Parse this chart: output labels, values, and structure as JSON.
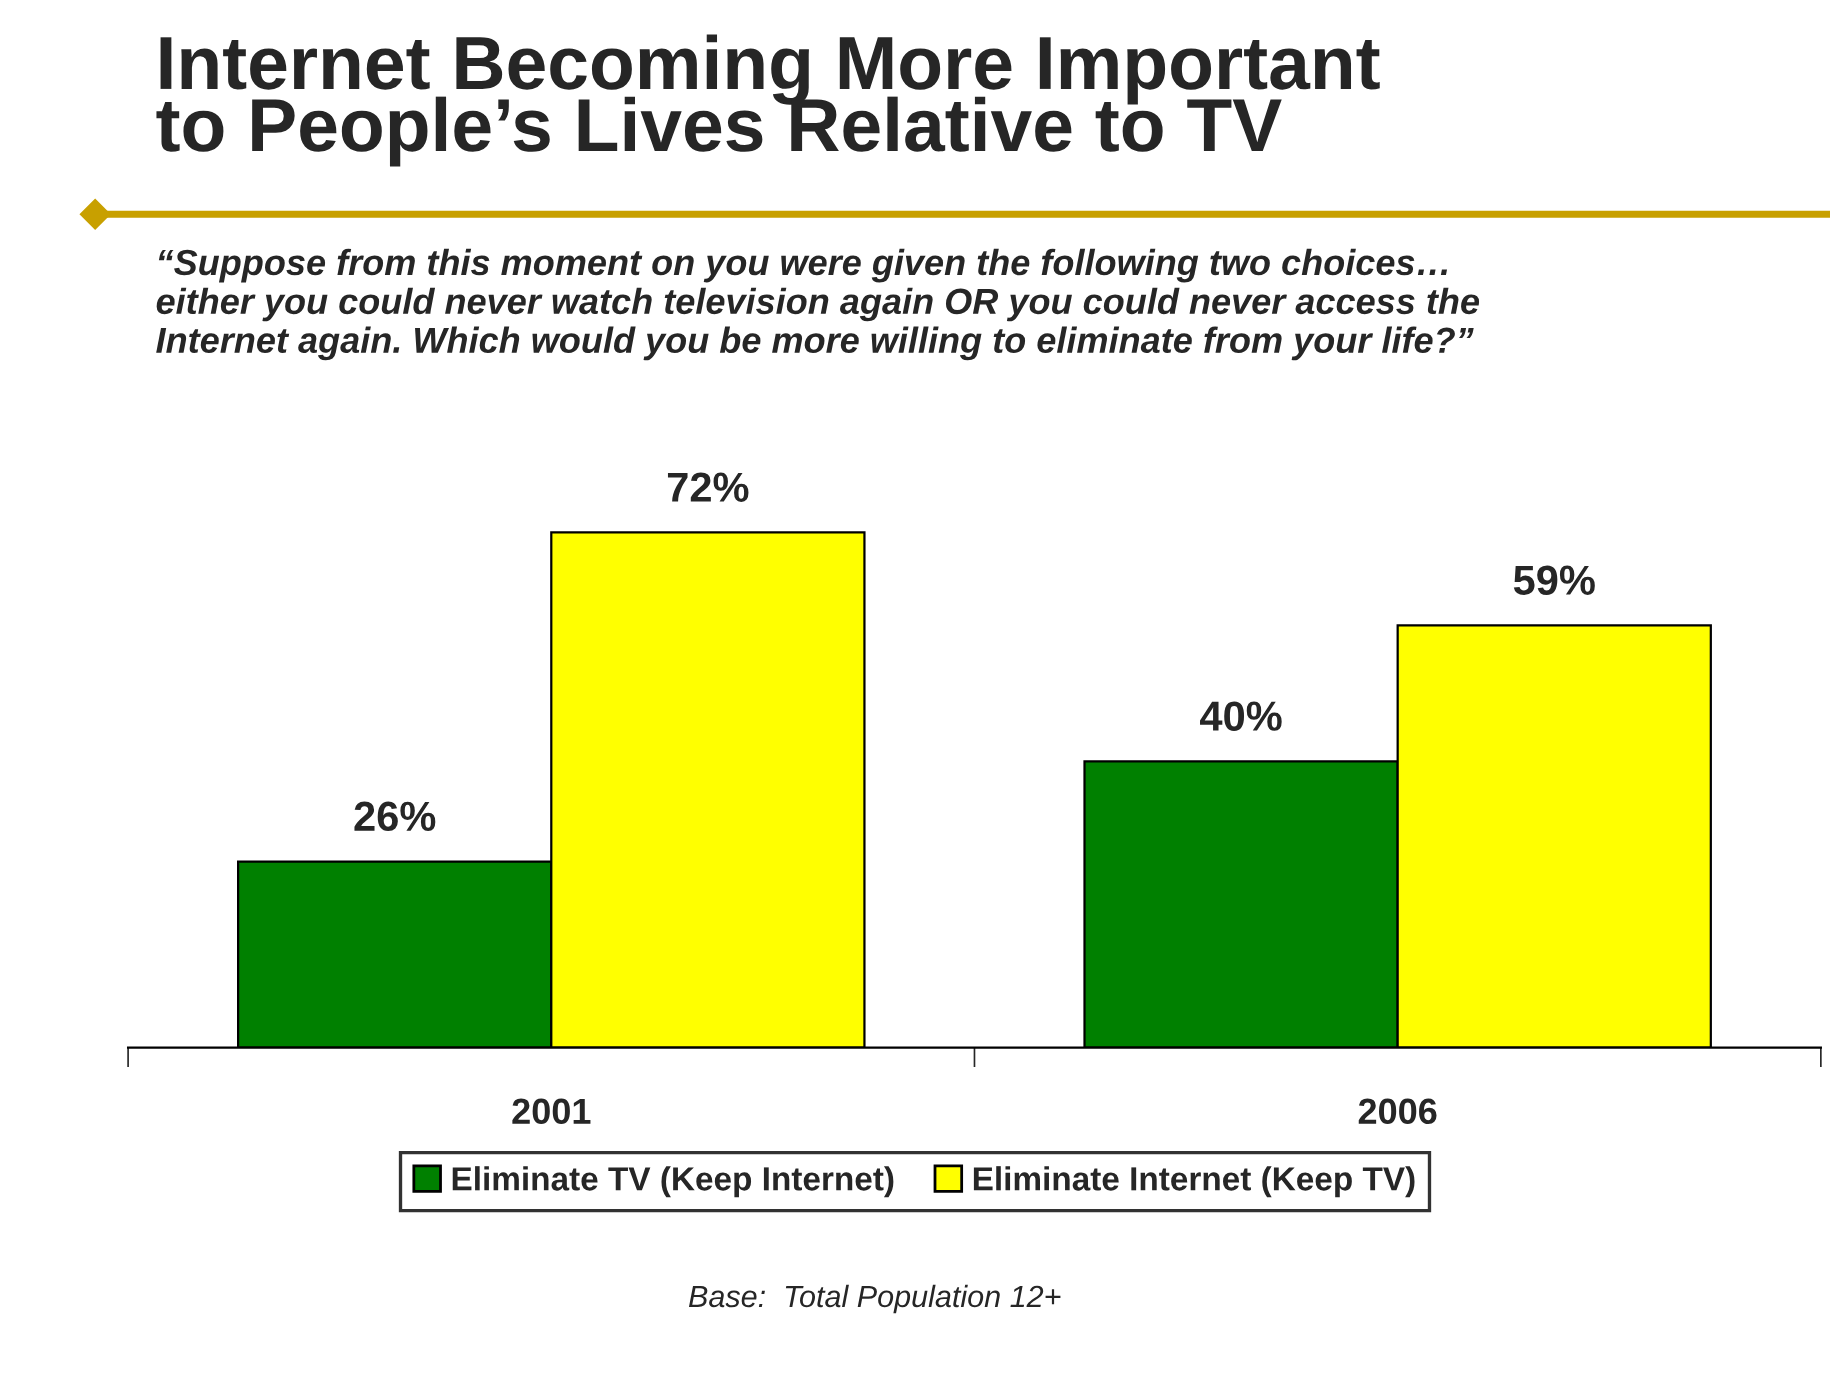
{
  "chart_data": {
    "type": "bar",
    "title": "Internet Becoming More Important\nto People’s Lives Relative to TV",
    "subtitle": "“Suppose from this moment on you were given the following two choices…\neither you could never watch television again OR you could never access the\nInternet again. Which would you be more willing to eliminate from your life?”",
    "categories": [
      "2001",
      "2006"
    ],
    "series": [
      {
        "name": "Eliminate TV (Keep Internet)",
        "color": "#008000",
        "values": [
          26,
          40
        ],
        "value_labels": [
          "26%",
          "40%"
        ]
      },
      {
        "name": "Eliminate Internet (Keep TV)",
        "color": "#ffff00",
        "values": [
          72,
          59
        ],
        "value_labels": [
          "72%",
          "59%"
        ]
      }
    ],
    "legend": "bottom",
    "grid": false,
    "annotations": [
      "Base:  Total Population 12+"
    ]
  }
}
